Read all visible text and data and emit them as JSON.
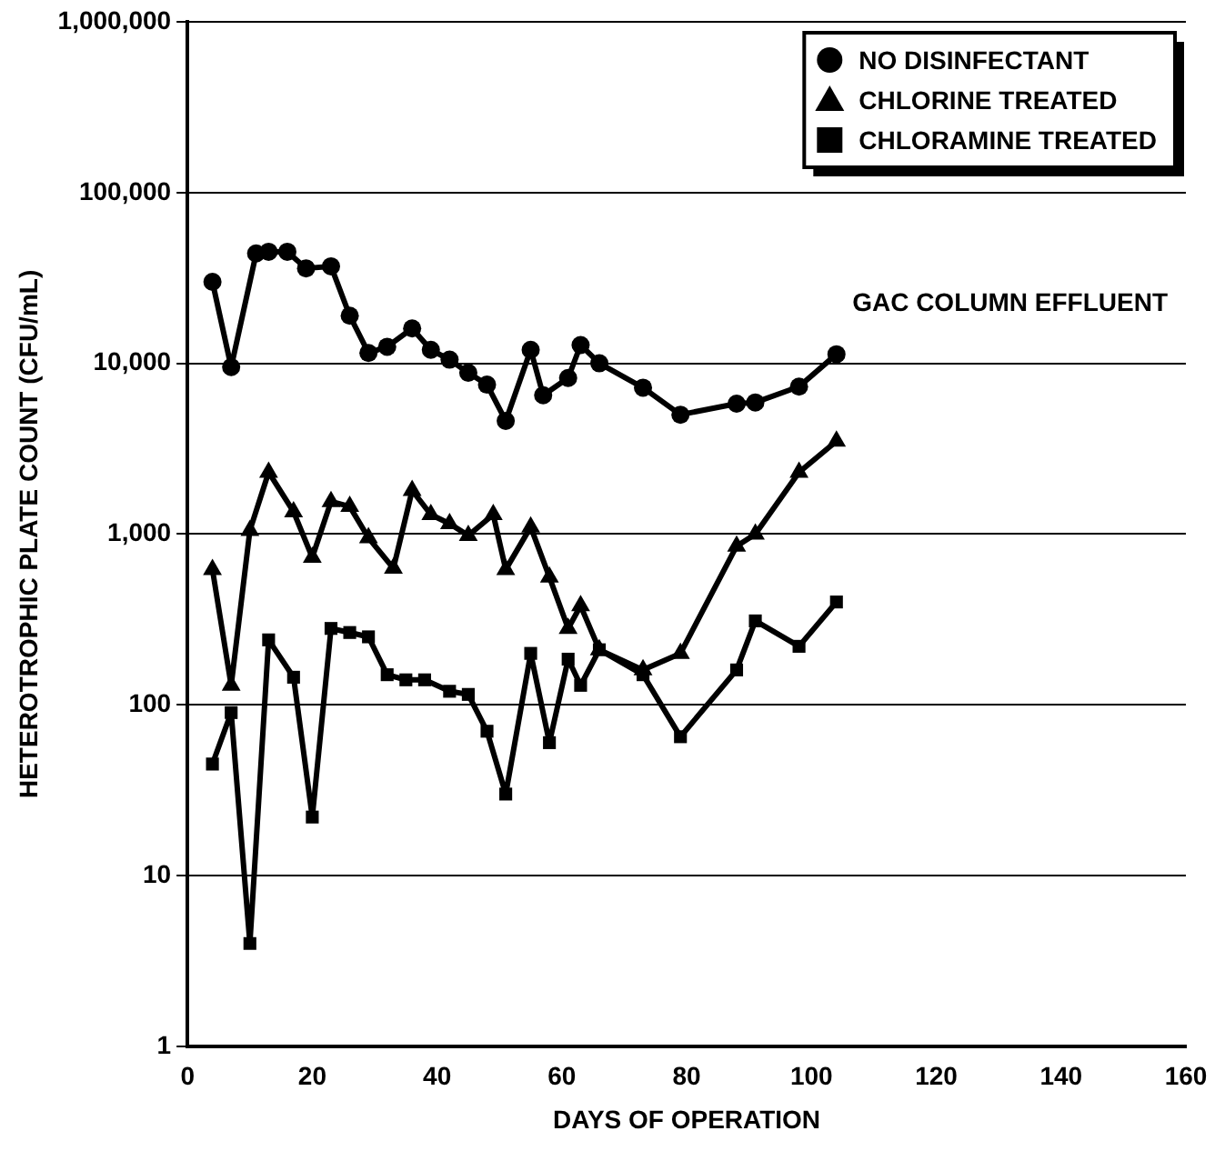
{
  "chart_data": {
    "type": "line",
    "xlabel": "DAYS OF OPERATION",
    "ylabel": "HETEROTROPHIC PLATE COUNT (CFU/mL)",
    "log": "y",
    "grid": "y",
    "legend": "top right",
    "line_style": "solid",
    "annotations": [
      "GAC COLUMN EFFLUENT"
    ],
    "xlim": [
      0,
      160
    ],
    "xticks": [
      0,
      20,
      40,
      60,
      80,
      100,
      120,
      140,
      160
    ],
    "ylim": [
      1,
      1000000
    ],
    "yticks": [
      1,
      10,
      100,
      {
        "value": 1000,
        "label": "1,000"
      },
      {
        "value": 10000,
        "label": "10,000"
      },
      {
        "value": 100000,
        "label": "100,000"
      },
      {
        "value": 1000000,
        "label": "1,000,000"
      }
    ],
    "series": [
      {
        "name": "NO DISINFECTANT",
        "color": "#000000",
        "marker": "circle",
        "x": [
          4,
          7,
          11,
          13,
          16,
          19,
          23,
          26,
          29,
          32,
          36,
          39,
          42,
          45,
          48,
          51,
          55,
          57,
          61,
          63,
          66,
          73,
          79,
          88,
          91,
          98,
          104
        ],
        "values": [
          30000,
          9500,
          44000,
          45000,
          45000,
          36000,
          37000,
          19000,
          11500,
          12500,
          16000,
          12000,
          10500,
          8800,
          7500,
          4600,
          12000,
          6500,
          8200,
          12800,
          10000,
          7200,
          5000,
          5800,
          5900,
          7300,
          11300
        ]
      },
      {
        "name": "CHLORINE TREATED",
        "color": "#000000",
        "marker": "triangle",
        "x": [
          4,
          7,
          10,
          13,
          17,
          20,
          23,
          26,
          29,
          33,
          36,
          39,
          42,
          45,
          49,
          51,
          55,
          58,
          61,
          63,
          66,
          73,
          79,
          88,
          91,
          98,
          104
        ],
        "values": [
          620,
          130,
          1050,
          2300,
          1350,
          730,
          1550,
          1450,
          950,
          630,
          1800,
          1300,
          1150,
          980,
          1300,
          620,
          1100,
          560,
          280,
          380,
          210,
          160,
          200,
          850,
          1000,
          2300,
          3500
        ]
      },
      {
        "name": "CHLORAMINE TREATED",
        "color": "#000000",
        "marker": "square",
        "x": [
          4,
          7,
          10,
          13,
          17,
          20,
          23,
          26,
          29,
          32,
          35,
          38,
          42,
          45,
          48,
          51,
          55,
          58,
          61,
          63,
          66,
          73,
          79,
          88,
          91,
          98,
          104
        ],
        "values": [
          45,
          90,
          4,
          240,
          145,
          22,
          280,
          265,
          250,
          150,
          140,
          140,
          120,
          115,
          70,
          30,
          200,
          60,
          185,
          130,
          210,
          150,
          65,
          160,
          310,
          220,
          400
        ]
      }
    ]
  }
}
